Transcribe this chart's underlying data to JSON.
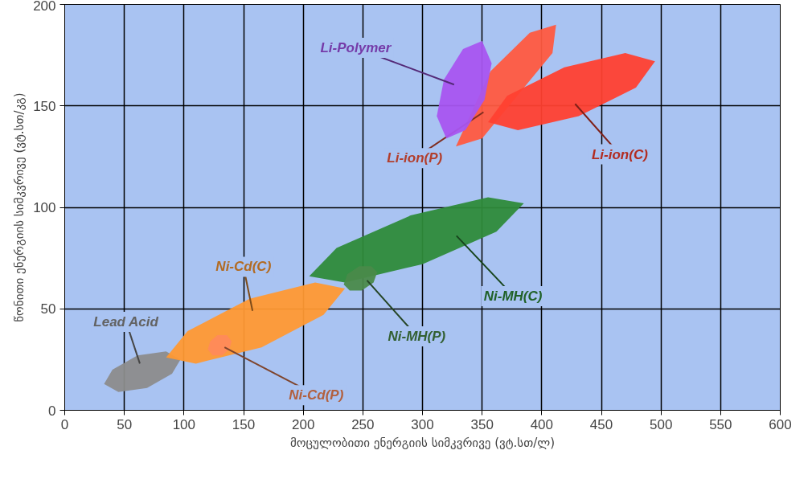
{
  "chart_data": {
    "type": "area",
    "xlabel": "მოცულობითი ენერგიის სიმკვრივე (ვტ.სთ/ლ)",
    "ylabel": "წონითი ენერგიის სიმკვრივე (ვტ.სთ/კგ)",
    "xlim": [
      0,
      600
    ],
    "ylim": [
      0,
      200
    ],
    "xticks": [
      0,
      50,
      100,
      150,
      200,
      250,
      300,
      350,
      400,
      450,
      500,
      550,
      600
    ],
    "yticks": [
      0,
      50,
      100,
      150,
      200
    ],
    "grid": true,
    "legend": false,
    "series": [
      {
        "name": "Lead Acid",
        "color": "#8c8c8c",
        "x": [
          97,
          85,
          61,
          40,
          33,
          45,
          69,
          90
        ],
        "values": [
          25,
          29,
          27,
          20,
          13,
          9,
          11,
          18
        ]
      },
      {
        "name": "Ni-Cd(C)",
        "color": "#ff9933",
        "x": [
          235,
          210,
          155,
          103,
          85,
          110,
          165,
          217
        ],
        "values": [
          60,
          63,
          55,
          39,
          26,
          23,
          31,
          47
        ]
      },
      {
        "name": "Ni-Cd(P)",
        "color": "#ff8a5a",
        "x": [
          140,
          136,
          128,
          122,
          120,
          124,
          132,
          138
        ],
        "values": [
          34,
          37,
          37,
          34,
          30,
          27,
          27,
          30
        ]
      },
      {
        "name": "Ni-MH(C)",
        "color": "#2e8b3a",
        "x": [
          385,
          355,
          290,
          228,
          205,
          235,
          300,
          362
        ],
        "values": [
          102,
          105,
          96,
          80,
          66,
          63,
          72,
          88
        ]
      },
      {
        "name": "Ni-MH(P)",
        "color": "#4a8a4a",
        "x": [
          262,
          257,
          247,
          237,
          234,
          239,
          249,
          259
        ],
        "values": [
          68,
          71,
          71,
          67,
          62,
          59,
          59,
          63
        ]
      },
      {
        "name": "Li-ion(P)",
        "color": "#ff5a40",
        "x": [
          412,
          390,
          357,
          331,
          328,
          350,
          383,
          409
        ],
        "values": [
          190,
          186,
          167,
          null,
          130,
          134,
          null,
          176
        ]
      },
      {
        "name": "Li-Polymer",
        "color": "#a855f0",
        "x": [
          350,
          334,
          318,
          312,
          320,
          336,
          352,
          358
        ],
        "values": [
          182,
          178,
          163,
          145,
          134,
          138,
          153,
          171
        ]
      },
      {
        "name": "Li-ion(C)",
        "color": "#ff4030",
        "x": [
          495,
          470,
          419,
          371,
          355,
          380,
          431,
          479
        ],
        "values": [
          172,
          176,
          169,
          155,
          142,
          138,
          145,
          159
        ]
      }
    ]
  }
}
